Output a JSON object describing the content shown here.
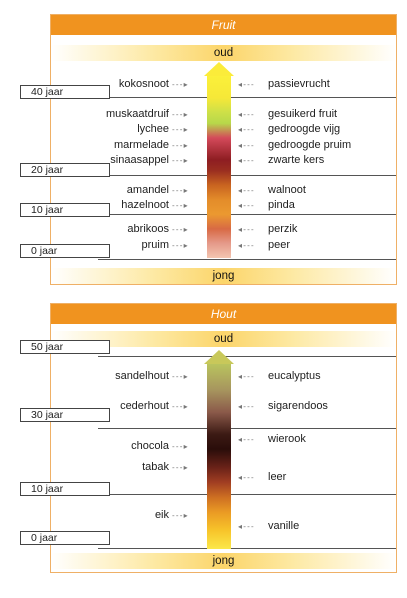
{
  "fruit": {
    "title": "Fruit",
    "top_label": "oud",
    "bottom_label": "jong",
    "ages": [
      "40 jaar",
      "20 jaar",
      "10 jaar",
      "0 jaar"
    ],
    "left_items": [
      "kokosnoot",
      "muskaatdruif",
      "lychee",
      "marmelade",
      "sinaasappel",
      "amandel",
      "hazelnoot",
      "abrikoos",
      "pruim"
    ],
    "right_items": [
      "passievrucht",
      "gesuikerd fruit",
      "gedroogde vijg",
      "gedroogde pruim",
      "zwarte kers",
      "walnoot",
      "pinda",
      "perzik",
      "peer"
    ]
  },
  "hout": {
    "title": "Hout",
    "top_label": "oud",
    "bottom_label": "jong",
    "ages": [
      "50 jaar",
      "30 jaar",
      "10 jaar",
      "0 jaar"
    ],
    "left_items": [
      "sandelhout",
      "cederhout",
      "chocola",
      "tabak",
      "eik"
    ],
    "right_items": [
      "eucalyptus",
      "sigarendoos",
      "wierook",
      "leer",
      "vanille"
    ]
  },
  "colors": {
    "header": "#f0931f",
    "panel_border": "#efb066"
  }
}
